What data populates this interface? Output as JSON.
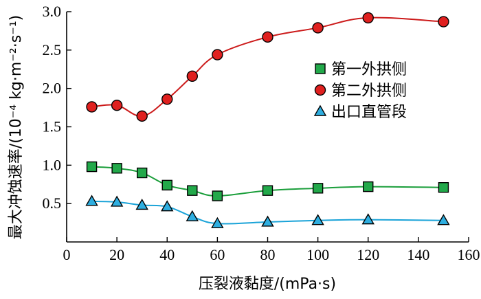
{
  "chart_data": {
    "type": "line",
    "xlabel": "压裂液黏度/(mPa·s)",
    "ylabel": "最大冲蚀速率/(10⁻⁴ kg·m⁻²·s⁻¹)",
    "xlim": [
      0,
      160
    ],
    "ylim": [
      0,
      3.0
    ],
    "xticks": [
      0,
      20,
      40,
      60,
      80,
      100,
      120,
      140,
      160
    ],
    "yticks": [
      0.5,
      1.0,
      1.5,
      2.0,
      2.5,
      3.0
    ],
    "xtick_labels": [
      "0",
      "20",
      "40",
      "60",
      "80",
      "100",
      "120",
      "140",
      "160"
    ],
    "ytick_labels": [
      "0.5",
      "1.0",
      "1.5",
      "2.0",
      "2.5",
      "3.0"
    ],
    "grid": false,
    "legend_position": "right-center",
    "x": [
      10,
      20,
      30,
      40,
      50,
      60,
      80,
      100,
      120,
      150
    ],
    "series": [
      {
        "name": "第一外拱侧",
        "marker": "square",
        "line_color": "#1a9e3a",
        "marker_color": "#22a94a",
        "values": [
          0.98,
          0.96,
          0.9,
          0.74,
          0.67,
          0.6,
          0.67,
          0.7,
          0.72,
          0.71
        ]
      },
      {
        "name": "第二外拱侧",
        "marker": "circle",
        "line_color": "#cc1a1a",
        "marker_color": "#e0201f",
        "values": [
          1.76,
          1.78,
          1.64,
          1.86,
          2.16,
          2.44,
          2.67,
          2.79,
          2.92,
          2.87
        ]
      },
      {
        "name": "出口直管段",
        "marker": "triangle",
        "line_color": "#1aa3d8",
        "marker_color": "#2eaee0",
        "values": [
          0.53,
          0.52,
          0.48,
          0.46,
          0.33,
          0.24,
          0.26,
          0.28,
          0.29,
          0.28
        ]
      }
    ]
  }
}
